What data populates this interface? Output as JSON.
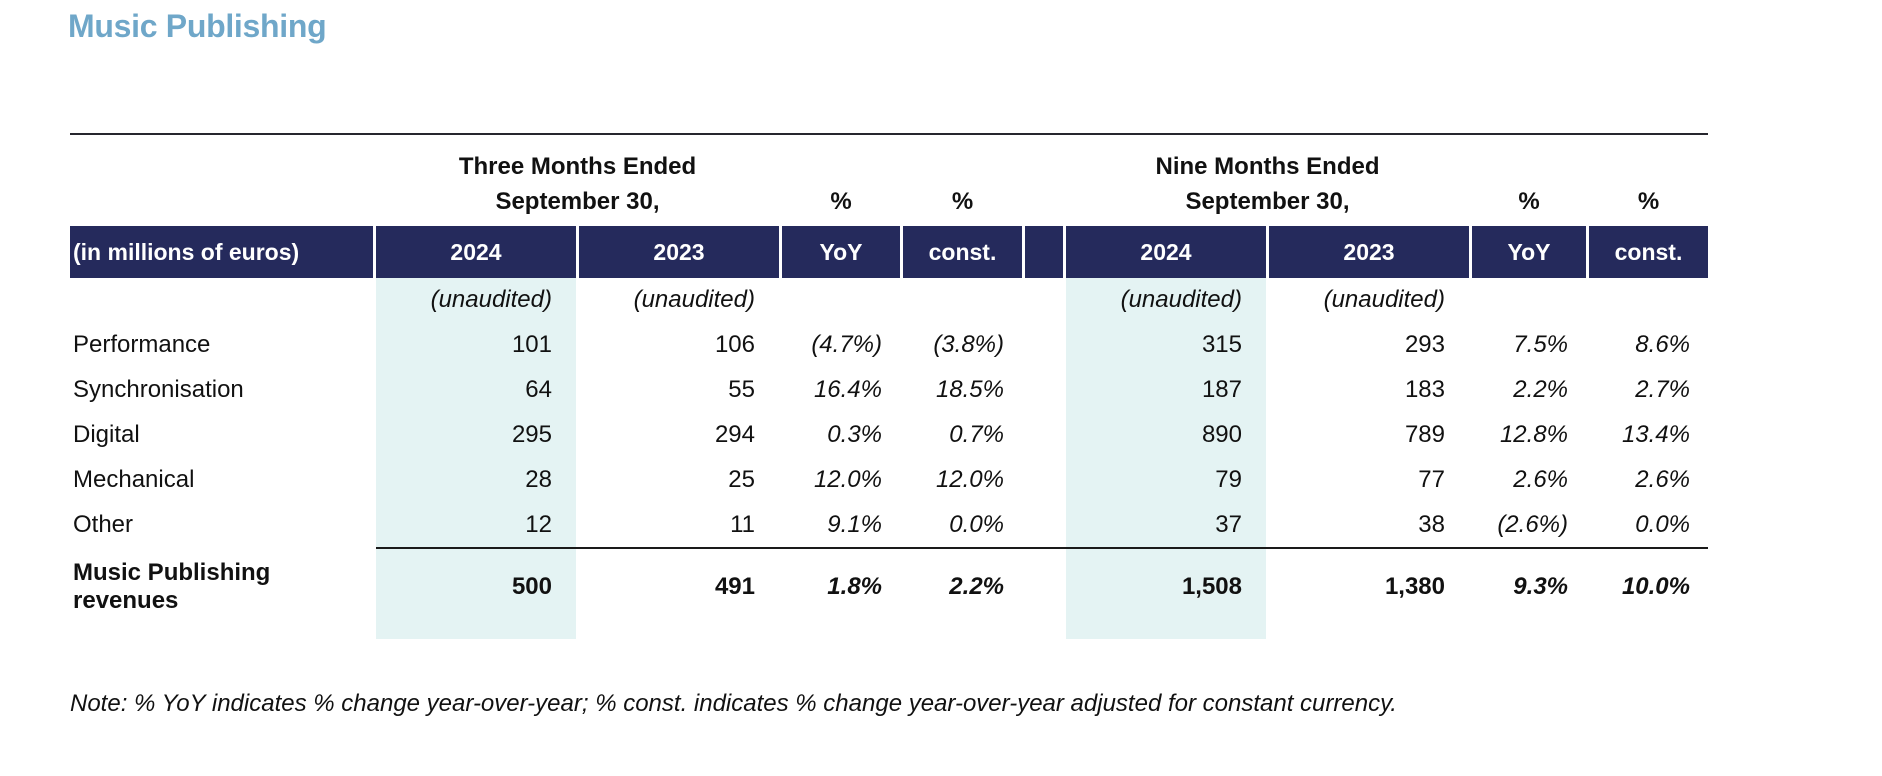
{
  "page": {
    "title": "Music Publishing"
  },
  "colors": {
    "navy": "#252a5c",
    "teal_highlight": "#e4f3f3",
    "title_blue": "#6fa7c9"
  },
  "table": {
    "groups": [
      {
        "line1": "Three Months Ended",
        "line2": "September 30,",
        "pct_yoy": "%",
        "pct_const": "%"
      },
      {
        "line1": "Nine Months Ended",
        "line2": "September 30,",
        "pct_yoy": "%",
        "pct_const": "%"
      }
    ],
    "header": {
      "label": "(in millions of euros)",
      "cols": [
        "2024",
        "2023",
        "YoY",
        "const.",
        "2024",
        "2023",
        "YoY",
        "const."
      ]
    },
    "unaudited": "(unaudited)",
    "rows": [
      {
        "label": "Performance",
        "values": [
          "101",
          "106",
          "(4.7%)",
          "(3.8%)",
          "315",
          "293",
          "7.5%",
          "8.6%"
        ]
      },
      {
        "label": "Synchronisation",
        "values": [
          "64",
          "55",
          "16.4%",
          "18.5%",
          "187",
          "183",
          "2.2%",
          "2.7%"
        ]
      },
      {
        "label": "Digital",
        "values": [
          "295",
          "294",
          "0.3%",
          "0.7%",
          "890",
          "789",
          "12.8%",
          "13.4%"
        ]
      },
      {
        "label": "Mechanical",
        "values": [
          "28",
          "25",
          "12.0%",
          "12.0%",
          "79",
          "77",
          "2.6%",
          "2.6%"
        ]
      },
      {
        "label": "Other",
        "values": [
          "12",
          "11",
          "9.1%",
          "0.0%",
          "37",
          "38",
          "(2.6%)",
          "0.0%"
        ]
      }
    ],
    "total": {
      "label": "Music Publishing revenues",
      "values": [
        "500",
        "491",
        "1.8%",
        "2.2%",
        "1,508",
        "1,380",
        "9.3%",
        "10.0%"
      ]
    }
  },
  "note": "Note: % YoY indicates % change year-over-year; % const. indicates % change year-over-year adjusted for constant currency."
}
